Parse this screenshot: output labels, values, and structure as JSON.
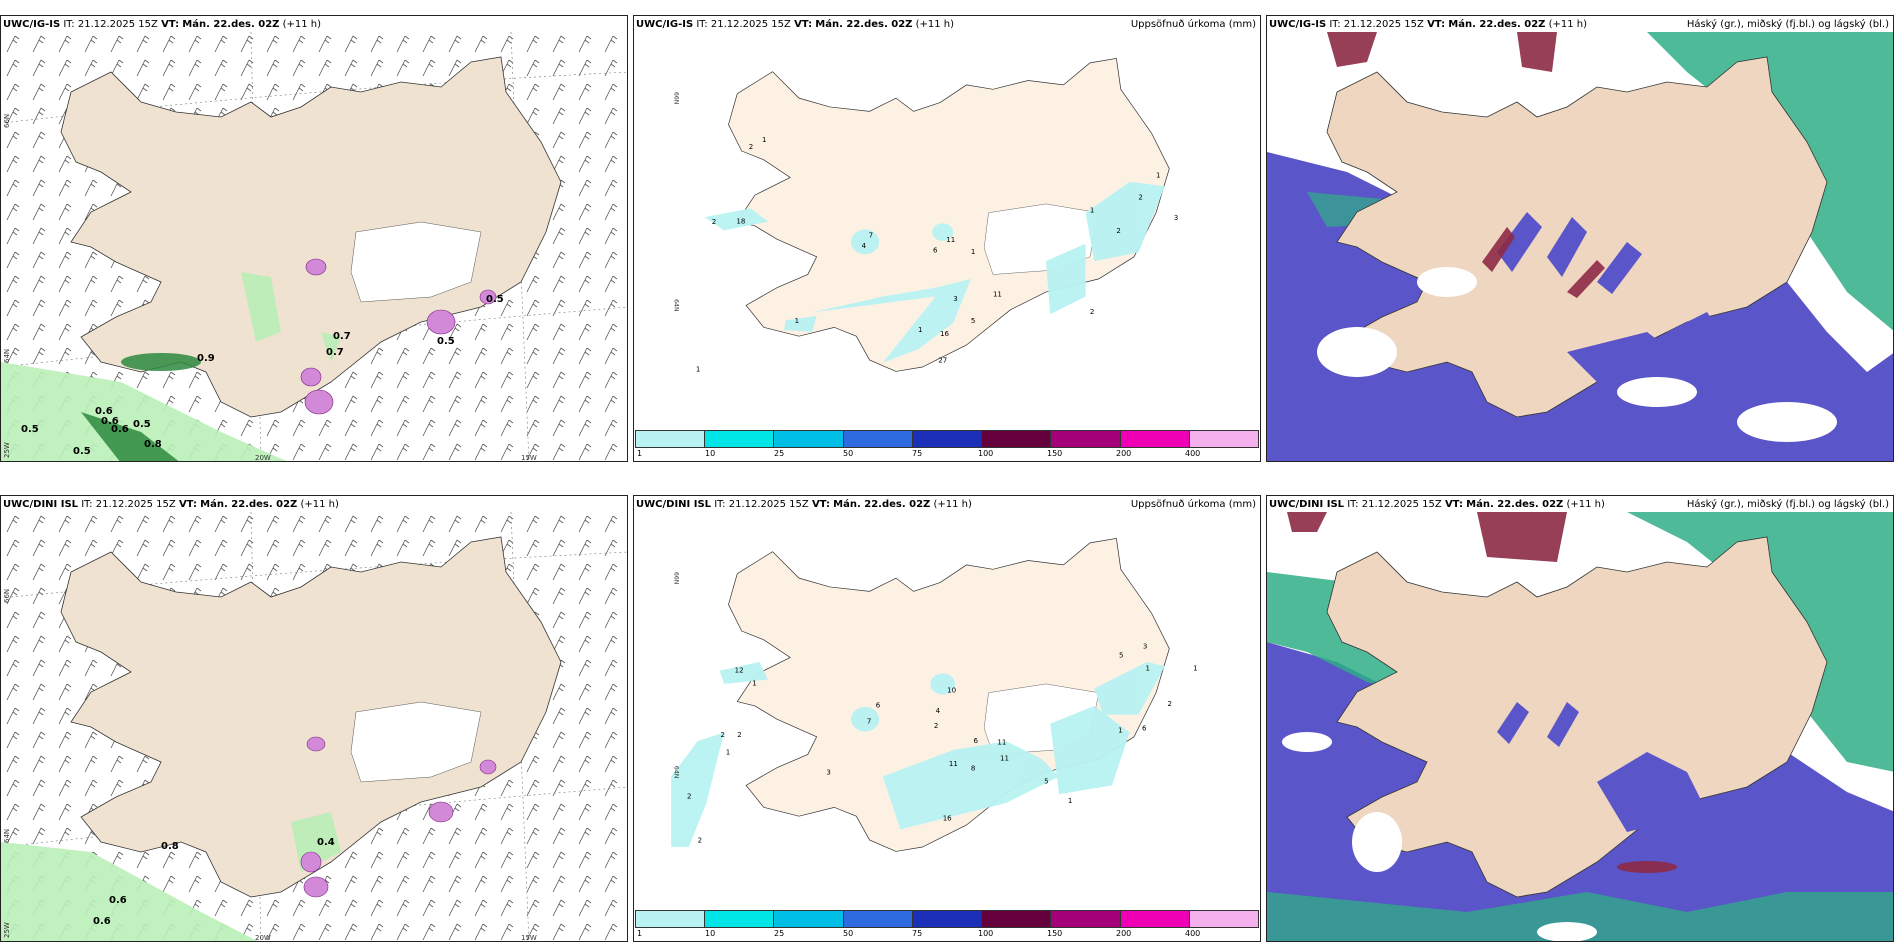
{
  "panels": {
    "p1": {
      "model": "UWC/IG-IS",
      "it_label": "IT:",
      "it_value": "21.12.2025 15Z",
      "vt_label": "VT:",
      "vt_value": "Mán. 22.des. 02Z",
      "lead": "(+11 h)",
      "title_right": ""
    },
    "p2": {
      "model": "UWC/IG-IS",
      "it_label": "IT:",
      "it_value": "21.12.2025 15Z",
      "vt_label": "VT:",
      "vt_value": "Mán. 22.des. 02Z",
      "lead": "(+11 h)",
      "title_right": "Uppsöfnuð úrkoma (mm)"
    },
    "p3": {
      "model": "UWC/IG-IS",
      "it_label": "IT:",
      "it_value": "21.12.2025 15Z",
      "vt_label": "VT:",
      "vt_value": "Mán. 22.des. 02Z",
      "lead": "(+11 h)",
      "title_right": "Háský (gr.), miðský (fj.bl.) og lágský (bl.)"
    },
    "p4": {
      "model": "UWC/DINI ISL",
      "it_label": "IT:",
      "it_value": "21.12.2025 15Z",
      "vt_label": "VT:",
      "vt_value": "Mán. 22.des. 02Z",
      "lead": "(+11 h)",
      "title_right": ""
    },
    "p5": {
      "model": "UWC/DINI ISL",
      "it_label": "IT:",
      "it_value": "21.12.2025 15Z",
      "vt_label": "VT:",
      "vt_value": "Mán. 22.des. 02Z",
      "lead": "(+11 h)",
      "title_right": "Uppsöfnuð úrkoma (mm)"
    },
    "p6": {
      "model": "UWC/DINI ISL",
      "it_label": "IT:",
      "it_value": "21.12.2025 15Z",
      "vt_label": "VT:",
      "vt_value": "Mán. 22.des. 02Z",
      "lead": "(+11 h)",
      "title_right": "Háský (gr.), miðský (fj.bl.) og lágský (bl.)"
    }
  },
  "grid_labels": {
    "lat66": "66N",
    "lat64": "64N",
    "lon20": "20W",
    "lon15": "15W",
    "lon25": "25W"
  },
  "colorbar": {
    "colors": [
      "#b8f2f2",
      "#00e5e5",
      "#00bfe6",
      "#2f6be0",
      "#1c2fb8",
      "#66003d",
      "#a3007a",
      "#f000b4",
      "#f5b0ee"
    ],
    "ticks": [
      "1",
      "10",
      "25",
      "50",
      "75",
      "100",
      "150",
      "200",
      "400"
    ]
  },
  "wind_values_top": [
    "0.5",
    "0.5",
    "0.6",
    "0.6",
    "0.6",
    "0.5",
    "0.8",
    "0.9",
    "0.7",
    "0.7",
    "0.5",
    "0.5"
  ],
  "wind_values_bottom": [
    "0.6",
    "0.6",
    "0.8",
    "0.4"
  ],
  "precip_values_top": [
    "2",
    "18",
    "1",
    "2",
    "4",
    "7",
    "6",
    "11",
    "1",
    "3",
    "5",
    "11",
    "1",
    "16",
    "27",
    "1",
    "2",
    "3",
    "2",
    "1",
    "2",
    "1",
    "1"
  ],
  "precip_values_bottom": [
    "12",
    "1",
    "2",
    "2",
    "1",
    "2",
    "2",
    "7",
    "6",
    "4",
    "10",
    "2",
    "6",
    "11",
    "11",
    "8",
    "11",
    "16",
    "3",
    "5",
    "1",
    "6",
    "1",
    "2",
    "3",
    "5",
    "1",
    "1"
  ],
  "colors": {
    "land": "#f0e2d0",
    "land_precip": "#fdf1e4",
    "mid_cloud": "#5a55c8",
    "low_cloud": "#2fae86",
    "high_cloud": "#8c2a45",
    "cloud_land": "#eed6c0"
  }
}
